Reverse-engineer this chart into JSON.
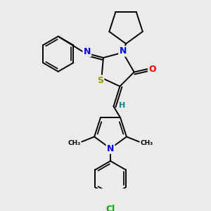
{
  "background_color": "#ebebeb",
  "atom_colors": {
    "N": "#0000ff",
    "O": "#ff0000",
    "S": "#999900",
    "Cl": "#00aa00",
    "H": "#008888",
    "C": "#000000"
  },
  "bond_color": "#000000",
  "bond_width": 1.4,
  "figsize": [
    3.0,
    3.0
  ],
  "dpi": 100
}
